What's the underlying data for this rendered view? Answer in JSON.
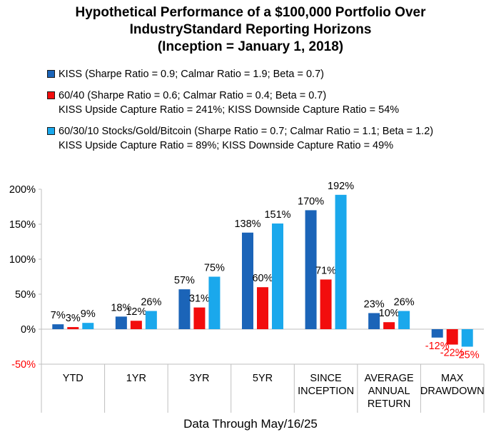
{
  "title_lines": [
    "Hypothetical Performance of a $100,000 Portfolio Over",
    "IndustryStandard Reporting Horizons",
    "(Inception = January 1, 2018)"
  ],
  "legend": [
    {
      "line1": "KISS (Sharpe Ratio = 0.9; Calmar Ratio = 1.9; Beta = 0.7)",
      "line2": "",
      "color": "#1B64B8"
    },
    {
      "line1": "60/40 (Sharpe Ratio = 0.6; Calmar Ratio = 0.4; Beta = 0.7)",
      "line2": "KISS Upside Capture Ratio = 241%; KISS Downside Capture Ratio = 54%",
      "color": "#F20D0D"
    },
    {
      "line1": "60/30/10 Stocks/Gold/Bitcoin (Sharpe Ratio = 0.7; Calmar Ratio = 1.1; Beta = 1.2)",
      "line2": "KISS Upside Capture Ratio = 89%; KISS Downside Capture Ratio = 49%",
      "color": "#1AA8EC"
    }
  ],
  "footer": "Data Through May/16/25",
  "chart_data": {
    "type": "bar",
    "categories": [
      [
        "YTD"
      ],
      [
        "1YR"
      ],
      [
        "3YR"
      ],
      [
        "5YR"
      ],
      [
        "SINCE",
        "INCEPTION"
      ],
      [
        "AVERAGE",
        "ANNUAL",
        "RETURN"
      ],
      [
        "MAX",
        "DRAWDOWN"
      ]
    ],
    "series": [
      {
        "name": "KISS",
        "color": "#1B64B8",
        "values": [
          7,
          18,
          57,
          138,
          170,
          23,
          -12
        ],
        "labels": [
          "7%",
          "18%",
          "57%",
          "138%",
          "170%",
          "23%",
          "-12%"
        ]
      },
      {
        "name": "60/40",
        "color": "#F20D0D",
        "values": [
          3,
          12,
          31,
          60,
          71,
          10,
          -22
        ],
        "labels": [
          "3%",
          "12%",
          "31%",
          "60%",
          "71%",
          "10%",
          "-22%"
        ]
      },
      {
        "name": "60/30/10 Stocks/Gold/Bitcoin",
        "color": "#1AA8EC",
        "values": [
          9,
          26,
          75,
          151,
          192,
          26,
          -25
        ],
        "labels": [
          "9%",
          "26%",
          "75%",
          "151%",
          "192%",
          "26%",
          "-25%"
        ]
      }
    ],
    "negative_label_color": "#FF0000",
    "ylim": [
      -50,
      200
    ],
    "yticks": [
      200,
      150,
      100,
      50,
      0,
      -50
    ],
    "ytick_labels": [
      "200%",
      "150%",
      "100%",
      "50%",
      "0%",
      "-50%"
    ],
    "negative_tick_color": "#FF0000",
    "grid": false,
    "legend_position": "top"
  }
}
